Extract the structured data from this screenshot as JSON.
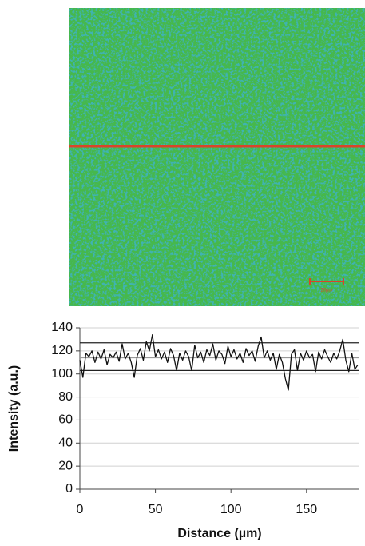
{
  "image": {
    "scale_bar_label": "20µm"
  },
  "chart_data": {
    "type": "line",
    "x_label": "Distance (µm)",
    "y_label": "Intensity (a.u.)",
    "x": [
      0,
      2,
      4,
      6,
      8,
      10,
      12,
      14,
      16,
      18,
      20,
      22,
      24,
      26,
      28,
      30,
      32,
      34,
      36,
      38,
      40,
      42,
      44,
      46,
      48,
      50,
      52,
      54,
      56,
      58,
      60,
      62,
      64,
      66,
      68,
      70,
      72,
      74,
      76,
      78,
      80,
      82,
      84,
      86,
      88,
      90,
      92,
      94,
      96,
      98,
      100,
      102,
      104,
      106,
      108,
      110,
      112,
      114,
      116,
      118,
      120,
      122,
      124,
      126,
      128,
      130,
      132,
      134,
      136,
      138,
      140,
      142,
      144,
      146,
      148,
      150,
      152,
      154,
      156,
      158,
      160,
      162,
      164,
      166,
      168,
      170,
      172,
      174,
      176,
      178,
      180,
      182,
      184
    ],
    "series": [
      {
        "color": "#111111",
        "values": [
          112,
          97,
          118,
          115,
          120,
          110,
          119,
          113,
          121,
          108,
          117,
          114,
          119,
          111,
          126,
          113,
          118,
          110,
          97,
          116,
          122,
          112,
          128,
          120,
          134,
          115,
          121,
          113,
          119,
          110,
          122,
          116,
          103,
          118,
          112,
          120,
          115,
          103,
          125,
          114,
          119,
          110,
          121,
          116,
          126,
          112,
          120,
          117,
          109,
          124,
          115,
          121,
          113,
          118,
          110,
          122,
          116,
          120,
          111,
          124,
          132,
          114,
          120,
          112,
          118,
          104,
          117,
          110,
          96,
          86,
          117,
          121,
          103,
          118,
          112,
          120,
          114,
          117,
          102,
          119,
          113,
          121,
          115,
          110,
          118,
          113,
          120,
          130,
          112,
          102,
          118,
          104,
          108
        ]
      }
    ],
    "reference_lines": [
      {
        "value": 127,
        "color": "#222222"
      },
      {
        "value": 114,
        "color": "#999999"
      },
      {
        "value": 103,
        "color": "#222222"
      }
    ],
    "xlim": [
      0,
      185
    ],
    "xticks": [
      0,
      50,
      100,
      150
    ],
    "ylim": [
      0,
      140
    ],
    "yticks": [
      0,
      20,
      40,
      60,
      80,
      100,
      120,
      140
    ],
    "grid": true
  }
}
